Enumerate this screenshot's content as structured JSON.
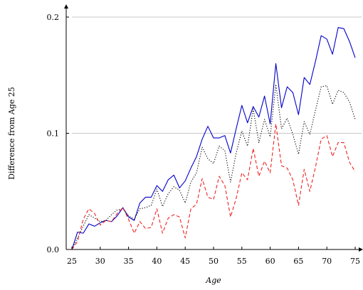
{
  "chart_data": {
    "type": "line",
    "title": "",
    "xlabel": "Age",
    "ylabel": "Difference from Age 25",
    "xlim": [
      25,
      75
    ],
    "ylim": [
      0,
      0.2
    ],
    "x_ticks": [
      25,
      30,
      35,
      40,
      45,
      50,
      55,
      60,
      65,
      70,
      75
    ],
    "y_ticks": [
      0,
      0.1,
      0.2
    ],
    "x_tick_labels": [
      "25",
      "30",
      "35",
      "40",
      "45",
      "50",
      "55",
      "60",
      "65",
      "70",
      "75"
    ],
    "y_tick_labels": [
      "0.0",
      "0.1",
      "0.2"
    ],
    "grid": "horizontal",
    "legend": "none",
    "x": [
      25,
      26,
      27,
      28,
      29,
      30,
      31,
      32,
      33,
      34,
      35,
      36,
      37,
      38,
      39,
      40,
      41,
      42,
      43,
      44,
      45,
      46,
      47,
      48,
      49,
      50,
      51,
      52,
      53,
      54,
      55,
      56,
      57,
      58,
      59,
      60,
      61,
      62,
      63,
      64,
      65,
      66,
      67,
      68,
      69,
      70,
      71,
      72,
      73,
      74,
      75
    ],
    "series": [
      {
        "color": "#0000cc",
        "style": "solid",
        "values": [
          0.0,
          0.015,
          0.014,
          0.022,
          0.02,
          0.023,
          0.025,
          0.024,
          0.029,
          0.036,
          0.028,
          0.025,
          0.04,
          0.045,
          0.045,
          0.055,
          0.05,
          0.06,
          0.064,
          0.053,
          0.059,
          0.07,
          0.08,
          0.095,
          0.106,
          0.096,
          0.096,
          0.098,
          0.083,
          0.104,
          0.124,
          0.109,
          0.123,
          0.114,
          0.132,
          0.108,
          0.16,
          0.122,
          0.14,
          0.135,
          0.116,
          0.148,
          0.142,
          0.162,
          0.184,
          0.181,
          0.168,
          0.191,
          0.19,
          0.179,
          0.165
        ]
      },
      {
        "color": "#000000",
        "style": "dotted",
        "values": [
          0.0,
          0.01,
          0.02,
          0.03,
          0.027,
          0.024,
          0.025,
          0.03,
          0.034,
          0.035,
          0.029,
          0.026,
          0.035,
          0.036,
          0.038,
          0.052,
          0.037,
          0.048,
          0.054,
          0.051,
          0.04,
          0.058,
          0.066,
          0.088,
          0.078,
          0.074,
          0.089,
          0.085,
          0.058,
          0.083,
          0.102,
          0.089,
          0.121,
          0.092,
          0.112,
          0.097,
          0.142,
          0.104,
          0.113,
          0.099,
          0.082,
          0.11,
          0.099,
          0.12,
          0.14,
          0.141,
          0.125,
          0.137,
          0.135,
          0.127,
          0.112
        ]
      },
      {
        "color": "#ee2222",
        "style": "dashed",
        "values": [
          0.0,
          0.007,
          0.026,
          0.035,
          0.031,
          0.021,
          0.025,
          0.024,
          0.031,
          0.036,
          0.026,
          0.014,
          0.024,
          0.018,
          0.019,
          0.035,
          0.014,
          0.027,
          0.03,
          0.028,
          0.01,
          0.035,
          0.039,
          0.061,
          0.045,
          0.043,
          0.063,
          0.055,
          0.028,
          0.044,
          0.066,
          0.06,
          0.087,
          0.063,
          0.076,
          0.066,
          0.108,
          0.072,
          0.07,
          0.06,
          0.038,
          0.069,
          0.05,
          0.071,
          0.095,
          0.098,
          0.08,
          0.092,
          0.092,
          0.075,
          0.067
        ]
      }
    ]
  }
}
